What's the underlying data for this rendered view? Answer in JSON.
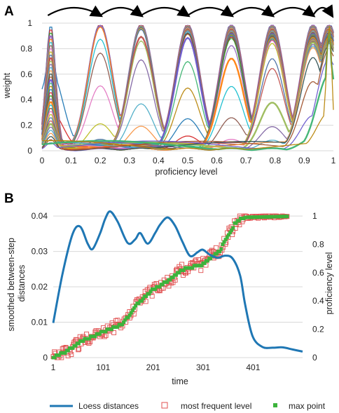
{
  "chart_data": [
    {
      "panel": "A",
      "type": "line",
      "xlabel": "proficiency level",
      "ylabel": "weight",
      "xlim": [
        0,
        1
      ],
      "ylim": [
        0,
        1
      ],
      "xticks": [
        "0",
        "0.1",
        "0.2",
        "0.3",
        "0.4",
        "0.5",
        "0.6",
        "0.7",
        "0.8",
        "0.9",
        "1"
      ],
      "yticks": [
        "0",
        "0.2",
        "0.4",
        "0.6",
        "0.8",
        "1"
      ],
      "grid": "horizontal",
      "peaks": [
        0.03,
        0.2,
        0.34,
        0.5,
        0.65,
        0.79,
        0.93,
        0.985
      ],
      "series_count": 40,
      "transition_arrows": [
        [
          0.02,
          0.2
        ],
        [
          0.2,
          0.34
        ],
        [
          0.34,
          0.5
        ],
        [
          0.5,
          0.65
        ],
        [
          0.65,
          0.79
        ],
        [
          0.79,
          0.93
        ],
        [
          0.93,
          0.995
        ]
      ],
      "colors": [
        "#1f77b4",
        "#d62728",
        "#2ca02c",
        "#9467bd",
        "#ff7f0e",
        "#17becf",
        "#8c564b",
        "#e377c2",
        "#bcbd22",
        "#4a6fa5",
        "#c0504d",
        "#9bbb59",
        "#8064a2",
        "#4bacc6",
        "#f79646",
        "#2f4f4f",
        "#a0522d",
        "#6a5acd",
        "#3cb371",
        "#b8860b"
      ]
    },
    {
      "panel": "B",
      "type": "line",
      "xlabel": "time",
      "ylabel": "smoothed between-step distances",
      "y2label": "proficiency level",
      "xlim": [
        1,
        500
      ],
      "ylim": [
        0,
        0.042
      ],
      "y2lim": [
        0,
        1.05
      ],
      "xticks": [
        "1",
        "101",
        "201",
        "301",
        "401"
      ],
      "yticks": [
        "0",
        "0.01",
        "0.02",
        "0.03",
        "0.04"
      ],
      "y2ticks": [
        "0",
        "0.2",
        "0.4",
        "0.6",
        "0.8",
        "1"
      ],
      "grid": "horizontal",
      "series": [
        {
          "name": "Loess distances",
          "color": "#1f77b4",
          "x": [
            1,
            20,
            40,
            55,
            70,
            80,
            95,
            105,
            115,
            130,
            150,
            165,
            175,
            190,
            205,
            215,
            230,
            245,
            260,
            275,
            290,
            300,
            315,
            330,
            345,
            360,
            375,
            385,
            400,
            420,
            440,
            460,
            480,
            500
          ],
          "values": [
            0.0098,
            0.024,
            0.035,
            0.037,
            0.0322,
            0.0307,
            0.0352,
            0.0392,
            0.0413,
            0.0384,
            0.0324,
            0.0334,
            0.0352,
            0.0322,
            0.0352,
            0.0376,
            0.0396,
            0.0372,
            0.0326,
            0.0287,
            0.0298,
            0.0305,
            0.029,
            0.0282,
            0.0288,
            0.028,
            0.0232,
            0.015,
            0.006,
            0.003,
            0.0028,
            0.0029,
            0.0023,
            0.0017
          ]
        },
        {
          "name": "most frequent level",
          "color": "#e05050"
        },
        {
          "name": "max point",
          "color": "#3cb33c"
        }
      ],
      "max_point_trend": {
        "x": [
          1,
          30,
          60,
          100,
          140,
          170,
          200,
          235,
          260,
          300,
          335,
          365,
          380,
          500
        ],
        "values": [
          0.0,
          0.05,
          0.12,
          0.18,
          0.24,
          0.38,
          0.48,
          0.55,
          0.62,
          0.66,
          0.76,
          0.95,
          0.99,
          1.0
        ]
      }
    }
  ],
  "legend": {
    "loess": "Loess distances",
    "most_frequent": "most frequent level",
    "max_point": "max point"
  }
}
